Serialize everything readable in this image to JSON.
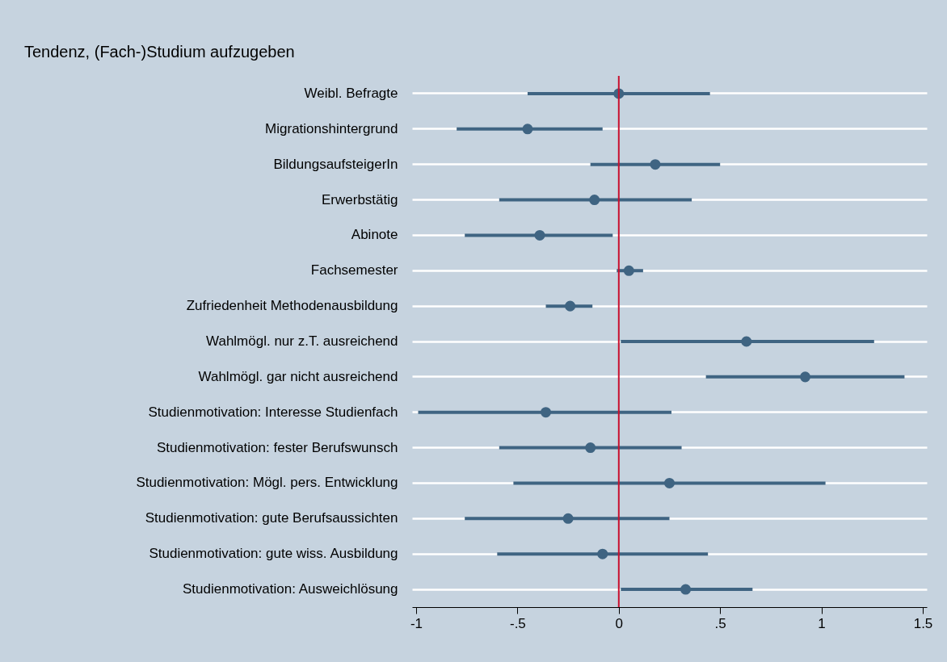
{
  "chart_data": {
    "type": "scatter",
    "orientation": "horizontal",
    "title": "Tendenz, (Fach-)Studium aufzugeben",
    "categories": [
      "Weibl. Befragte",
      "Migrationshintergrund",
      "BildungsaufsteigerIn",
      "Erwerbstätig",
      "Abinote",
      "Fachsemester",
      "Zufriedenheit Methodenausbildung",
      "Wahlmögl. nur z.T. ausreichend",
      "Wahlmögl. gar nicht ausreichend",
      "Studienmotivation: Interesse Studienfach",
      "Studienmotivation: fester Berufswunsch",
      "Studienmotivation: Mögl. pers. Entwicklung",
      "Studienmotivation: gute Berufsaussichten",
      "Studienmotivation: gute wiss. Ausbildung",
      "Studienmotivation: Ausweichlösung"
    ],
    "series": [
      {
        "color": "#3f6482",
        "values": [
          0.0,
          -0.45,
          0.18,
          -0.12,
          -0.39,
          0.05,
          -0.24,
          0.63,
          0.92,
          -0.36,
          -0.14,
          0.25,
          -0.25,
          -0.08,
          0.33
        ],
        "errors": [
          [
            -0.45,
            0.45
          ],
          [
            -0.8,
            -0.08
          ],
          [
            -0.14,
            0.5
          ],
          [
            -0.59,
            0.36
          ],
          [
            -0.76,
            -0.03
          ],
          [
            -0.01,
            0.12
          ],
          [
            -0.36,
            -0.13
          ],
          [
            0.01,
            1.26
          ],
          [
            0.43,
            1.41
          ],
          [
            -0.99,
            0.26
          ],
          [
            -0.59,
            0.31
          ],
          [
            -0.52,
            1.02
          ],
          [
            -0.76,
            0.25
          ],
          [
            -0.6,
            0.44
          ],
          [
            0.01,
            0.66
          ]
        ]
      }
    ],
    "xlim": [
      -1.02,
      1.52
    ],
    "xticks": [
      -1,
      {
        "value": -0.5,
        "label": "-.5"
      },
      0,
      {
        "value": 0.5,
        "label": ".5"
      },
      1,
      1.5
    ],
    "ref_lines": [
      {
        "axis": "x",
        "value": 0,
        "color": "#c8102e"
      }
    ],
    "grid": "y",
    "marker": "circle"
  }
}
